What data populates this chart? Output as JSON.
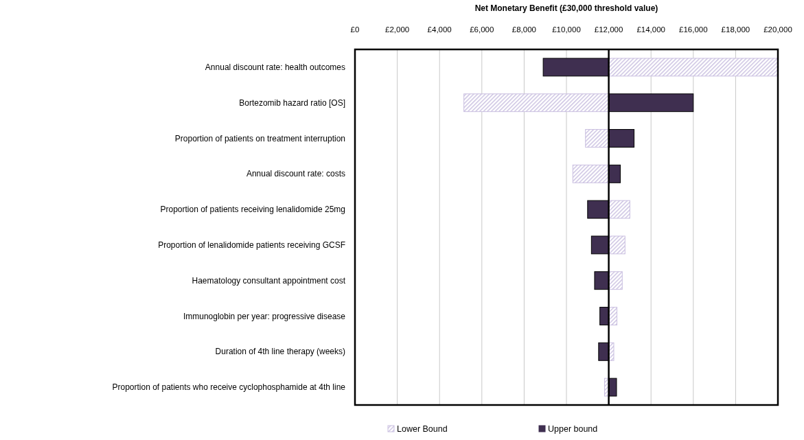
{
  "chart_data": {
    "type": "bar",
    "orientation": "horizontal",
    "xlabel": "Net Monetary Benefit (£30,000 threshold value)",
    "categories": [
      "Annual discount rate: health outcomes",
      "Bortezomib hazard ratio [OS]",
      "Proportion of patients on treatment interruption",
      "Annual discount rate: costs",
      "Proportion of patients receiving lenalidomide 25mg",
      "Proportion of lenalidomide patients receiving GCSF",
      "Haematology consultant appointment cost",
      "Immunoglobin per year: progressive disease",
      "Duration of 4th line therapy (weeks)",
      "Proportion of patients who receive cyclophosphamide at 4th line"
    ],
    "series": [
      {
        "name": "Lower Bound",
        "color": "#c9bfe0",
        "base": [
          12000,
          5150,
          10900,
          10300,
          12000,
          12000,
          12000,
          12000,
          12000,
          11800
        ],
        "values": [
          8000,
          6850,
          1100,
          1700,
          1000,
          770,
          640,
          390,
          240,
          200
        ]
      },
      {
        "name": "Upper bound",
        "color": "#3f2f50",
        "base": [
          8900,
          12000,
          12000,
          12000,
          11000,
          11180,
          11330,
          11580,
          11520,
          12000
        ],
        "values": [
          3100,
          4000,
          1200,
          550,
          1000,
          820,
          670,
          420,
          480,
          370
        ]
      }
    ],
    "xlim": [
      0,
      20000
    ],
    "xticks": [
      {
        "value": 0,
        "label": "£0"
      },
      {
        "value": 2000,
        "label": "£2,000"
      },
      {
        "value": 4000,
        "label": "£4,000"
      },
      {
        "value": 6000,
        "label": "£6,000"
      },
      {
        "value": 8000,
        "label": "£8,000"
      },
      {
        "value": 10000,
        "label": "£10,000"
      },
      {
        "value": 12000,
        "label": "£12,000"
      },
      {
        "value": 14000,
        "label": "£14,000"
      },
      {
        "value": 16000,
        "label": "£16,000"
      },
      {
        "value": 18000,
        "label": "£18,000"
      },
      {
        "value": 20000,
        "label": "£20,000"
      }
    ],
    "ref_lines": [
      {
        "axis": "x",
        "value": 12000,
        "color": "#000000"
      }
    ],
    "grid": "x",
    "legend": "bottom"
  }
}
